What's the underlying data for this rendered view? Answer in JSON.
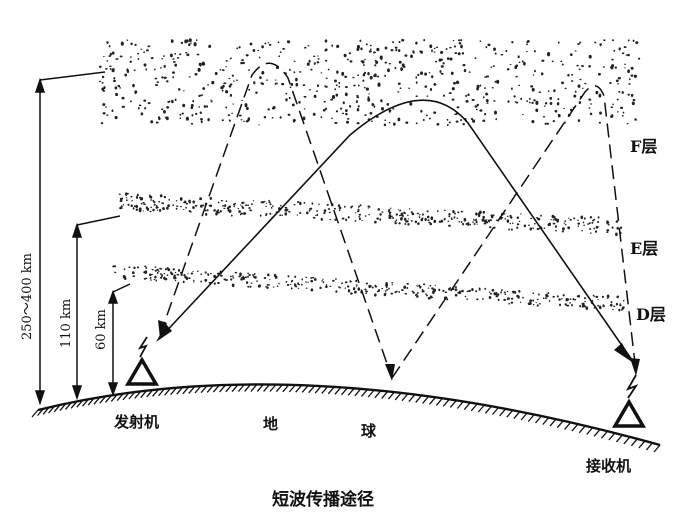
{
  "diagram": {
    "layers": {
      "f": "F层",
      "e": "E层",
      "d": "D层"
    },
    "altitudes": {
      "f_height": "250～400 km",
      "e_height": "110 km",
      "d_height": "60 km"
    },
    "places": {
      "transmitter": "发射机",
      "earth_left": "地",
      "earth_right": "球",
      "receiver": "接收机"
    },
    "caption": "短波传播途径"
  }
}
